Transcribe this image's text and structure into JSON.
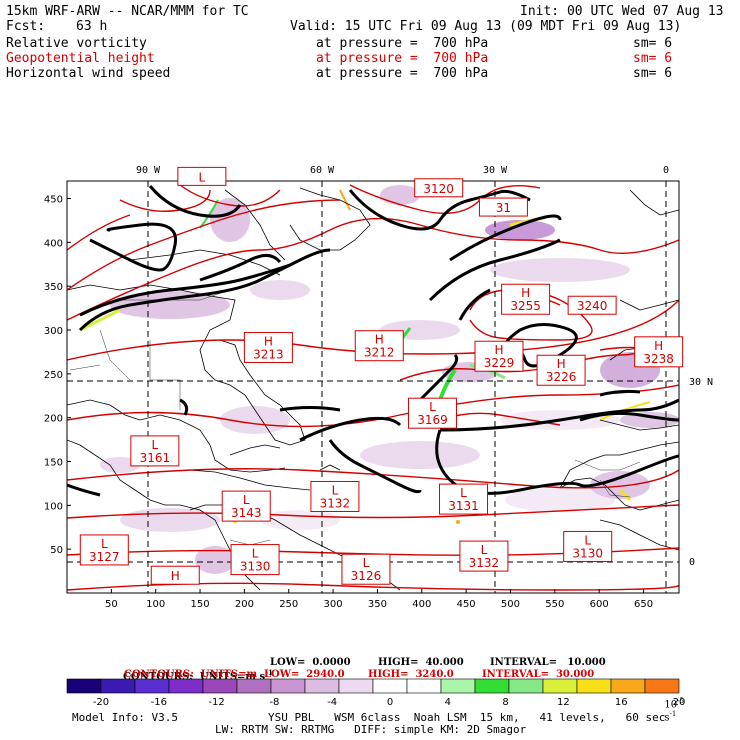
{
  "header": {
    "model": "15km WRF-ARW -- NCAR/MMM for TC",
    "init": "Init: 00 UTC Wed 07 Aug 13",
    "fcst_label": "Fcst:",
    "fcst_value": "63 h",
    "valid": "Valid: 15 UTC Fri 09 Aug 13 (09 MDT Fri 09 Aug 13)",
    "fields": [
      {
        "name": "Relative vorticity",
        "level": "at pressure =  700 hPa",
        "sm": "sm= 6",
        "color": "#000000"
      },
      {
        "name": "Geopotential height",
        "level": "at pressure =  700 hPa",
        "sm": "sm= 6",
        "color": "#d40000"
      },
      {
        "name": "Horizontal wind speed",
        "level": "at pressure =  700 hPa",
        "sm": "sm= 6",
        "color": "#000000"
      }
    ]
  },
  "map": {
    "top_labels": [
      "90 W",
      "60 W",
      "30 W",
      "0"
    ],
    "right_labels": [
      "30 N",
      "0"
    ],
    "x_ticks": [
      "50",
      "100",
      "150",
      "200",
      "250",
      "300",
      "350",
      "400",
      "450",
      "500",
      "550",
      "600",
      "650"
    ],
    "y_ticks": [
      "450",
      "400",
      "350",
      "300",
      "250",
      "200",
      "150",
      "100",
      "50"
    ],
    "x_range": [
      0,
      690
    ],
    "y_range": [
      0,
      470
    ],
    "highs": [
      {
        "label": "H",
        "value": "3213",
        "x": 200,
        "y": 263
      },
      {
        "label": "H",
        "value": "3212",
        "x": 325,
        "y": 265
      },
      {
        "label": "H",
        "value": "3229",
        "x": 460,
        "y": 253
      },
      {
        "label": "H",
        "value": "3226",
        "x": 530,
        "y": 237
      },
      {
        "label": "H",
        "value": "3255",
        "x": 490,
        "y": 318
      },
      {
        "label": "",
        "value": "3240",
        "x": 565,
        "y": 318
      },
      {
        "label": "H",
        "value": "3238",
        "x": 640,
        "y": 258
      },
      {
        "label": "",
        "value": "3120",
        "x": 392,
        "y": 452
      },
      {
        "label": "",
        "value": "31",
        "x": 465,
        "y": 430
      },
      {
        "label": "H",
        "value": "",
        "x": 95,
        "y": 10
      }
    ],
    "lows": [
      {
        "label": "L",
        "value": "3169",
        "x": 385,
        "y": 188
      },
      {
        "label": "L",
        "value": "3161",
        "x": 72,
        "y": 145
      },
      {
        "label": "L",
        "value": "3143",
        "x": 175,
        "y": 82
      },
      {
        "label": "L",
        "value": "3132",
        "x": 275,
        "y": 93
      },
      {
        "label": "L",
        "value": "3131",
        "x": 420,
        "y": 90
      },
      {
        "label": "L",
        "value": "3127",
        "x": 15,
        "y": 32
      },
      {
        "label": "L",
        "value": "3130",
        "x": 185,
        "y": 21
      },
      {
        "label": "L",
        "value": "3126",
        "x": 310,
        "y": 10
      },
      {
        "label": "L",
        "value": "3132",
        "x": 443,
        "y": 25
      },
      {
        "label": "L",
        "value": "3130",
        "x": 560,
        "y": 36
      },
      {
        "label": "L",
        "value": "",
        "x": 125,
        "y": 465
      }
    ]
  },
  "contours": {
    "line1_label": "CONTOURS:  UNITS=m s",
    "line1_sup": "-1",
    "line1_low": "LOW=  0.0000",
    "line1_high": "HIGH=  40.000",
    "line1_interval": "INTERVAL=   10.000",
    "line2_label": "CONTOURS:  UNITS=m  LOW=  2940.0",
    "line2_high": "HIGH=  3240.0",
    "line2_interval": "INTERVAL=  30.000"
  },
  "colorbar": {
    "labels": [
      "-20",
      "-16",
      "-12",
      "-8",
      "-4",
      "0",
      "4",
      "8",
      "12",
      "16",
      "20"
    ],
    "unit": "10",
    "unit_sup": "-5",
    "unit_tail": "s",
    "unit_tail_sup": "-1",
    "colors": [
      "#1a0078",
      "#3a1ab0",
      "#5a2fd0",
      "#7b2fc8",
      "#9a48b8",
      "#b070c0",
      "#c896d0",
      "#dcbce0",
      "#ecdaf0",
      "#ffffff",
      "#ffffff",
      "#aaf5aa",
      "#33dd33",
      "#88e888",
      "#d8f038",
      "#f8e018",
      "#f8a818",
      "#f87818"
    ]
  },
  "footer": {
    "model_info": "Model Info: V3.5",
    "line1": "YSU PBL   WSM 6class  Noah LSM  15 km,   41 levels,   60 sec",
    "line2": "LW: RRTM SW: RRTMG   DIFF: simple KM: 2D Smagor"
  }
}
